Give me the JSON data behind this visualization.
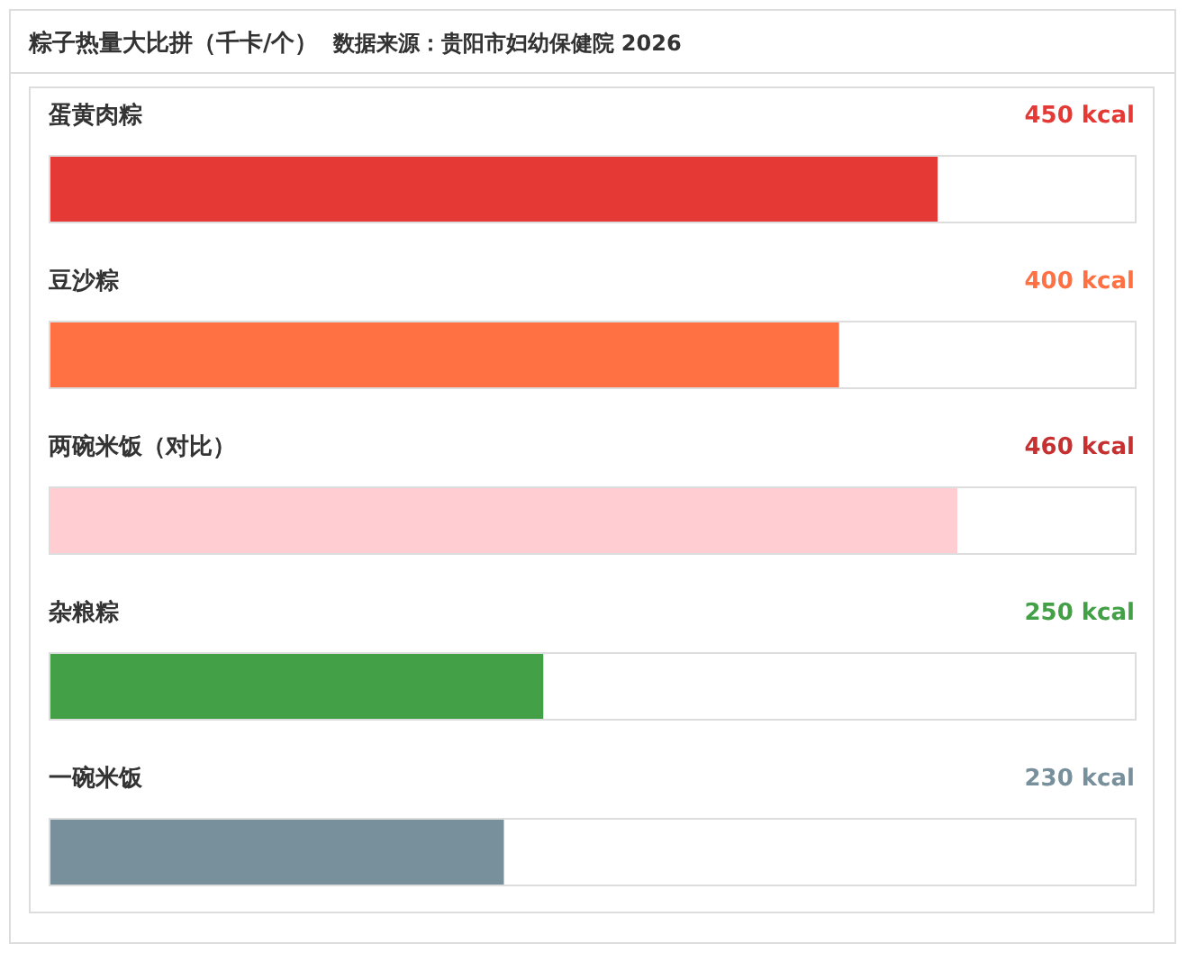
{
  "chart_data": {
    "type": "bar",
    "orientation": "horizontal",
    "title": "粽子热量大比拼（千卡/个）",
    "annotations": [
      "数据来源：贵阳市妇幼保健院 2026"
    ],
    "categories": [
      "蛋黄肉粽",
      "豆沙粽",
      "两碗米饭（对比）",
      "杂粮粽",
      "一碗米饭"
    ],
    "values": [
      450,
      400,
      460,
      250,
      230
    ],
    "value_labels": [
      "450 kcal",
      "400 kcal",
      "460 kcal",
      "250 kcal",
      "230 kcal"
    ],
    "colors": [
      "#e53935",
      "#ff7043",
      "#ffcdd2",
      "#43a047",
      "#78909c"
    ],
    "xlim": [
      0,
      550
    ]
  }
}
